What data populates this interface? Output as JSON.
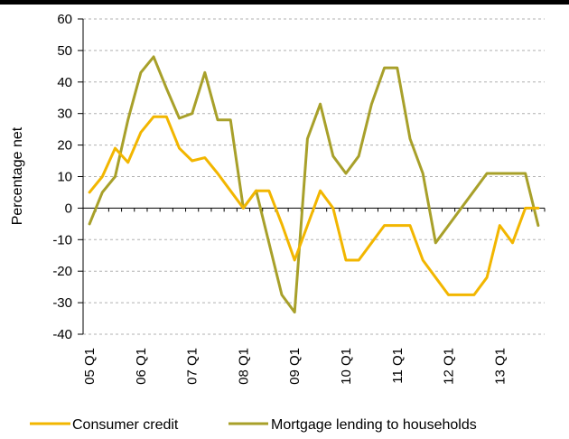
{
  "chart_data": {
    "type": "line",
    "title": "",
    "xlabel": "",
    "ylabel": "Percentage net",
    "ylim": [
      -40,
      60
    ],
    "yticks": [
      60,
      50,
      40,
      30,
      20,
      10,
      0,
      -10,
      -20,
      -30,
      -40
    ],
    "x_tick_labels": [
      "05 Q1",
      "06 Q1",
      "07 Q1",
      "08 Q1",
      "09 Q1",
      "10 Q1",
      "11 Q1",
      "12 Q1",
      "13 Q1"
    ],
    "grid": "horizontal dashed",
    "legend_placement": "bottom",
    "series": [
      {
        "name": "Consumer credit",
        "color": "#F2B600",
        "values": [
          5,
          10,
          19,
          14.5,
          24,
          29,
          29,
          19,
          15,
          16,
          11,
          5.5,
          0,
          5.5,
          5.5,
          -5,
          -16.5,
          -5.5,
          5.5,
          0,
          -16.5,
          -16.5,
          -11,
          -5.5,
          -5.5,
          -5.5,
          -16.5,
          -22,
          -27.5,
          -27.5,
          -27.5,
          -22,
          -5.5,
          -11,
          0,
          0
        ]
      },
      {
        "name": "Mortgage lending to households",
        "color": "#A8A02A",
        "values": [
          -5,
          5,
          10,
          28,
          43,
          48,
          38,
          28.5,
          30,
          43,
          28,
          28,
          0,
          5.5,
          -11,
          -27.5,
          -33,
          22,
          33,
          16.5,
          11,
          16.5,
          33,
          44.5,
          44.5,
          22,
          11,
          -11,
          -5.5,
          0,
          5.5,
          11,
          11,
          11,
          11,
          -5.5
        ]
      }
    ]
  }
}
